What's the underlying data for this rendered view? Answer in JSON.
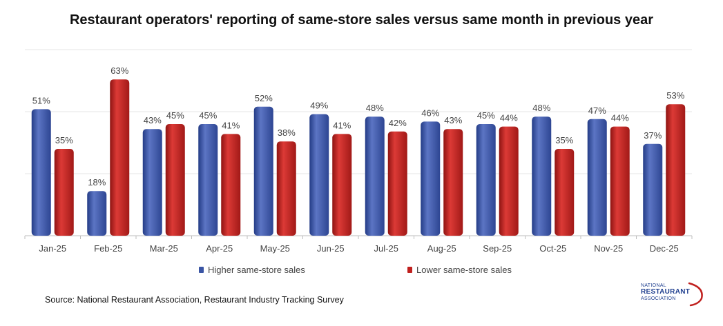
{
  "title": "Restaurant operators' reporting of same-store sales versus same month in previous year",
  "chart_data": {
    "type": "bar",
    "categories": [
      "Jan-25",
      "Feb-25",
      "Mar-25",
      "Apr-25",
      "May-25",
      "Jun-25",
      "Jul-25",
      "Aug-25",
      "Sep-25",
      "Oct-25",
      "Nov-25",
      "Dec-25"
    ],
    "series": [
      {
        "name": "Higher same-store sales",
        "color": "#3a55a4",
        "values": [
          51,
          18,
          43,
          45,
          52,
          49,
          48,
          46,
          45,
          48,
          47,
          37
        ],
        "labels": [
          "51%",
          "18%",
          "43%",
          "45%",
          "52%",
          "49%",
          "48%",
          "46%",
          "45%",
          "48%",
          "47%",
          "37%"
        ]
      },
      {
        "name": "Lower same-store sales",
        "color": "#c0201e",
        "values": [
          35,
          63,
          45,
          41,
          38,
          41,
          42,
          43,
          44,
          35,
          44,
          53
        ],
        "labels": [
          "35%",
          "63%",
          "45%",
          "41%",
          "38%",
          "41%",
          "42%",
          "43%",
          "44%",
          "35%",
          "44%",
          "53%"
        ]
      }
    ],
    "ylim": [
      0,
      75
    ],
    "grid": true,
    "legend": "bottom-center"
  },
  "source": "Source: National Restaurant Association, Restaurant Industry Tracking Survey",
  "logo": {
    "line1": "NATIONAL",
    "line2": "RESTAURANT",
    "line3": "ASSOCIATION",
    "color": "#1f3f8f",
    "accent": "#c0201e"
  }
}
